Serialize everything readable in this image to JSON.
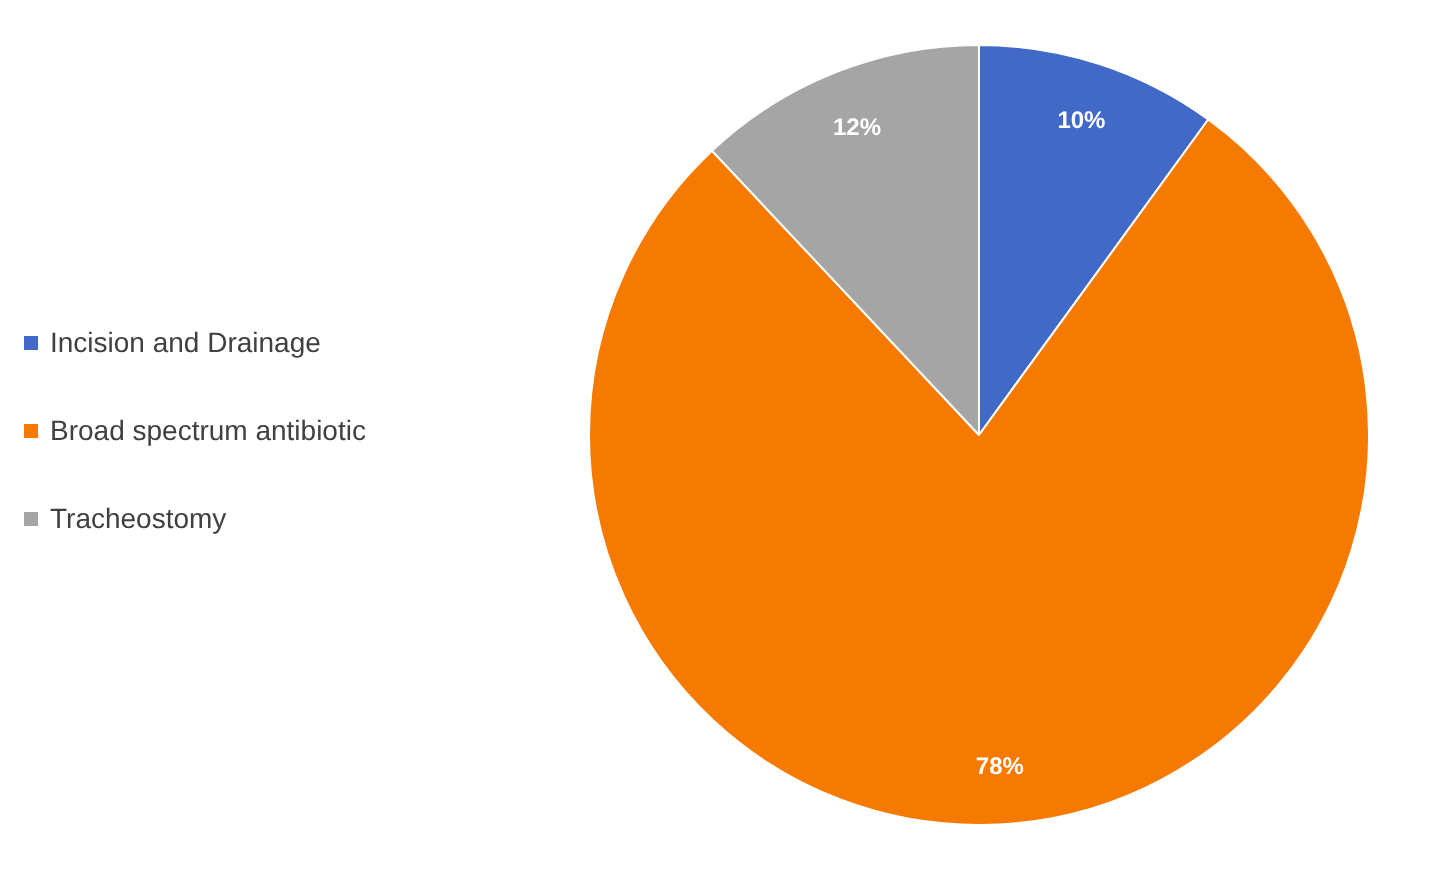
{
  "chart_data": {
    "type": "pie",
    "categories": [
      "Incision and Drainage",
      "Broad spectrum antibiotic",
      "Tracheostomy"
    ],
    "values": [
      10,
      78,
      12
    ],
    "colors": [
      "#4169c8",
      "#f77a00",
      "#a5a5a5"
    ],
    "value_labels": [
      "10%",
      "78%",
      "12%"
    ],
    "legend": "left"
  }
}
